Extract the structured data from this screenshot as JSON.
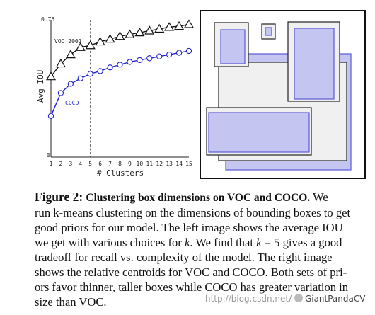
{
  "chart_data": {
    "type": "line",
    "x": [
      1,
      2,
      3,
      4,
      5,
      6,
      7,
      8,
      9,
      10,
      11,
      12,
      13,
      14,
      15
    ],
    "xlabel": "# Clusters",
    "ylabel": "Avg IOU",
    "xlim": [
      1,
      15
    ],
    "ylim": [
      0,
      0.75
    ],
    "yticks": [
      "0",
      "0.75"
    ],
    "xticks": [
      "1",
      "2",
      "3",
      "4",
      "5",
      "6",
      "7",
      "8",
      "9",
      "10",
      "11",
      "12",
      "13",
      "14",
      "15"
    ],
    "vline_x": 5,
    "series": [
      {
        "name": "VOC 2007",
        "marker": "triangle",
        "values": [
          0.44,
          0.51,
          0.56,
          0.6,
          0.61,
          0.63,
          0.645,
          0.66,
          0.67,
          0.68,
          0.69,
          0.7,
          0.71,
          0.715,
          0.725
        ]
      },
      {
        "name": "COCO",
        "marker": "circle",
        "color": "#2222cc",
        "values": [
          0.225,
          0.35,
          0.4,
          0.43,
          0.455,
          0.47,
          0.49,
          0.505,
          0.52,
          0.53,
          0.54,
          0.55,
          0.56,
          0.57,
          0.58
        ]
      }
    ]
  },
  "centroids_figure": {
    "voc_style": {
      "fill": "#f0f0f0",
      "stroke": "#222222"
    },
    "coco_style": {
      "fill": "#c5c5f2",
      "stroke": "#5b5bd6"
    }
  },
  "caption": {
    "label": "Figure 2:",
    "title": "Clustering box dimensions on VOC and COCO.",
    "line1_end": " We",
    "line2": "run k-means clustering on the dimensions of bounding boxes to get",
    "line3": "good priors for our model. The left image shows the average IOU",
    "line4_a": "we get with various choices for ",
    "k1": "k",
    "line4_b": ". We find that ",
    "k2": "k",
    "line4_c": " = 5 gives a good",
    "line5": "tradeoff for recall vs.  complexity of the model.  The right image",
    "line6": "shows the relative centroids for VOC and COCO. Both sets of pri-",
    "line7": "ors favor thinner, taller boxes while COCO has greater variation in",
    "line8": "size than VOC."
  },
  "watermark": {
    "text": "http://blog.csdn.net/",
    "brand": "GiantPandaCV"
  }
}
